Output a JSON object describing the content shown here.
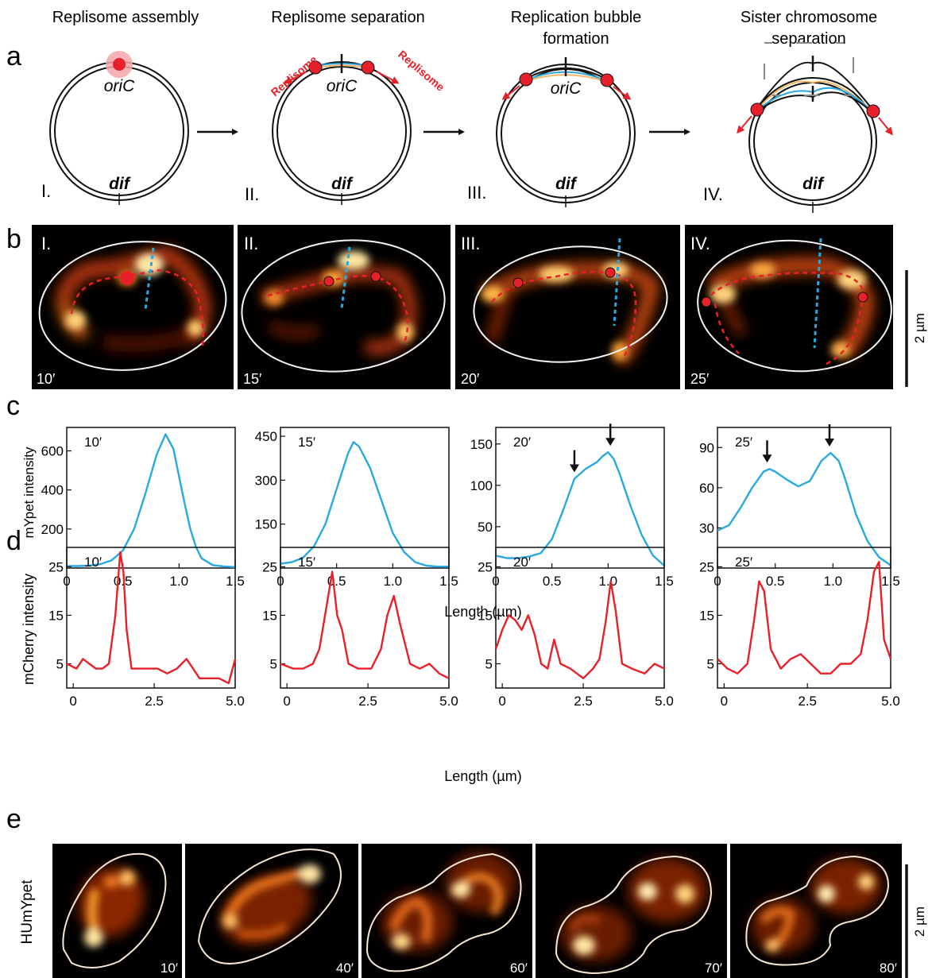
{
  "panel_letters": [
    "a",
    "b",
    "c",
    "d",
    "e"
  ],
  "panel_a": {
    "stage_titles": [
      [
        "Replisome assembly"
      ],
      [
        "Replisome separation"
      ],
      [
        "Replication bubble",
        "formation"
      ],
      [
        "Sister chromosome",
        "separation"
      ]
    ],
    "numerals": [
      "I.",
      "II.",
      "III.",
      "IV."
    ],
    "origin_label": "oriC",
    "terminus_label": "dif",
    "replisome_label": "Replisome",
    "colors": {
      "replisome": "#e8202a",
      "strand_blue": "#29a9e1",
      "strand_orange": "#f5b765"
    }
  },
  "panel_b": {
    "numerals": [
      "I.",
      "II.",
      "III.",
      "IV."
    ],
    "times": [
      "10′",
      "15′",
      "20′",
      "25′"
    ],
    "scale_bar": "2 µm"
  },
  "chart_data": [
    {
      "type": "line",
      "panel": "c",
      "annotation": "10′",
      "ylabel": "mYpet intensity",
      "xlabel": "Length (µm)",
      "xlim": [
        0,
        1.5
      ],
      "ylim": [
        0,
        720
      ],
      "xticks": [
        0,
        0.5,
        1.0,
        1.5
      ],
      "xticklabels": [
        "0",
        "0.5",
        "1.0",
        "1.5"
      ],
      "yticks": [
        200,
        400,
        600
      ],
      "yticklabels": [
        "200",
        "400",
        "600"
      ],
      "color": "#29a9e1",
      "x": [
        0,
        0.1,
        0.2,
        0.3,
        0.4,
        0.5,
        0.6,
        0.7,
        0.8,
        0.88,
        0.95,
        1.0,
        1.05,
        1.1,
        1.15,
        1.2,
        1.3,
        1.4,
        1.5
      ],
      "y": [
        10,
        10,
        12,
        20,
        40,
        90,
        200,
        380,
        580,
        685,
        610,
        470,
        330,
        200,
        110,
        50,
        15,
        8,
        5
      ]
    },
    {
      "type": "line",
      "panel": "c",
      "annotation": "15′",
      "xlim": [
        0,
        1.5
      ],
      "ylim": [
        0,
        480
      ],
      "xticks": [
        0,
        0.5,
        1.0,
        1.5
      ],
      "xticklabels": [
        "0",
        "0.5",
        "1.0",
        "1.5"
      ],
      "yticks": [
        150,
        300,
        450
      ],
      "yticklabels": [
        "150",
        "300",
        "450"
      ],
      "color": "#29a9e1",
      "x": [
        0,
        0.1,
        0.2,
        0.3,
        0.4,
        0.5,
        0.6,
        0.65,
        0.7,
        0.8,
        0.9,
        1.0,
        1.1,
        1.2,
        1.3,
        1.4,
        1.5
      ],
      "y": [
        15,
        20,
        35,
        75,
        150,
        270,
        390,
        430,
        415,
        340,
        230,
        120,
        55,
        20,
        8,
        5,
        5
      ]
    },
    {
      "type": "line",
      "panel": "c",
      "annotation": "20′",
      "xlim": [
        0,
        1.5
      ],
      "ylim": [
        0,
        170
      ],
      "xticks": [
        0,
        0.5,
        1.0,
        1.5
      ],
      "xticklabels": [
        "0",
        "0.5",
        "1.0",
        "1.5"
      ],
      "yticks": [
        50,
        100,
        150
      ],
      "yticklabels": [
        "50",
        "100",
        "150"
      ],
      "color": "#29a9e1",
      "x": [
        0,
        0.1,
        0.2,
        0.3,
        0.4,
        0.5,
        0.6,
        0.7,
        0.8,
        0.9,
        0.95,
        1.0,
        1.05,
        1.1,
        1.2,
        1.3,
        1.4,
        1.5
      ],
      "y": [
        15,
        12,
        12,
        14,
        18,
        35,
        70,
        108,
        120,
        128,
        135,
        140,
        132,
        115,
        75,
        40,
        15,
        3
      ],
      "arrows_x": [
        0.7,
        1.02
      ]
    },
    {
      "type": "line",
      "panel": "c",
      "annotation": "25′",
      "xlim": [
        0,
        1.5
      ],
      "ylim": [
        0,
        105
      ],
      "xticks": [
        0,
        0.5,
        1.0,
        1.5
      ],
      "xticklabels": [
        "0",
        "0.5",
        "1.0",
        "1.5"
      ],
      "yticks": [
        30,
        60,
        90
      ],
      "yticklabels": [
        "30",
        "60",
        "90"
      ],
      "color": "#29a9e1",
      "x": [
        0,
        0.1,
        0.2,
        0.3,
        0.4,
        0.45,
        0.5,
        0.6,
        0.7,
        0.8,
        0.9,
        0.98,
        1.05,
        1.1,
        1.2,
        1.3,
        1.4,
        1.5
      ],
      "y": [
        28,
        32,
        45,
        60,
        72,
        74,
        72,
        66,
        61,
        65,
        80,
        86,
        80,
        68,
        40,
        20,
        8,
        2
      ],
      "arrows_x": [
        0.43,
        0.97
      ]
    },
    {
      "type": "line",
      "panel": "d",
      "annotation": "10′",
      "ylabel": "mCherry intensity",
      "xlabel": "Length (µm)",
      "xlim": [
        -0.2,
        5.0
      ],
      "ylim": [
        0,
        29
      ],
      "xticks": [
        0,
        2.5,
        5.0
      ],
      "xticklabels": [
        "0",
        "2.5",
        "5.0"
      ],
      "yticks": [
        5,
        15,
        25
      ],
      "yticklabels": [
        "5",
        "15",
        "25"
      ],
      "color": "#e8202a",
      "x": [
        -0.2,
        0.1,
        0.3,
        0.5,
        0.7,
        0.9,
        1.1,
        1.3,
        1.45,
        1.55,
        1.65,
        1.8,
        2.0,
        2.3,
        2.6,
        2.9,
        3.2,
        3.5,
        3.7,
        3.9,
        4.2,
        4.5,
        4.8,
        5.0
      ],
      "y": [
        5,
        4,
        6,
        5,
        4,
        4,
        5,
        15,
        28,
        24,
        12,
        4,
        4,
        4,
        4,
        3,
        4,
        6,
        4,
        2,
        2,
        2,
        1,
        6
      ]
    },
    {
      "type": "line",
      "panel": "d",
      "annotation": "15′",
      "xlim": [
        -0.2,
        5.0
      ],
      "ylim": [
        0,
        29
      ],
      "xticks": [
        0,
        2.5,
        5.0
      ],
      "xticklabels": [
        "0",
        "2.5",
        "5.0"
      ],
      "yticks": [
        5,
        15,
        25
      ],
      "yticklabels": [
        "5",
        "15",
        "25"
      ],
      "color": "#e8202a",
      "x": [
        -0.2,
        0.2,
        0.5,
        0.8,
        1.0,
        1.2,
        1.4,
        1.55,
        1.7,
        1.9,
        2.2,
        2.6,
        2.9,
        3.1,
        3.3,
        3.5,
        3.8,
        4.1,
        4.4,
        4.7,
        5.0
      ],
      "y": [
        5,
        4,
        4,
        5,
        8,
        16,
        24,
        15,
        12,
        5,
        4,
        4,
        8,
        15,
        19,
        13,
        5,
        4,
        5,
        3,
        2
      ]
    },
    {
      "type": "line",
      "panel": "d",
      "annotation": "20′",
      "xlim": [
        -0.2,
        5.0
      ],
      "ylim": [
        0,
        29
      ],
      "xticks": [
        0,
        2.5,
        5.0
      ],
      "xticklabels": [
        "0",
        "2.5",
        "5.0"
      ],
      "yticks": [
        5,
        15,
        25
      ],
      "yticklabels": [
        "5",
        "15",
        "25"
      ],
      "color": "#e8202a",
      "x": [
        -0.2,
        0.0,
        0.2,
        0.4,
        0.6,
        0.8,
        1.0,
        1.2,
        1.4,
        1.6,
        1.8,
        2.1,
        2.5,
        2.8,
        3.0,
        3.2,
        3.35,
        3.5,
        3.7,
        4.0,
        4.4,
        4.7,
        5.0
      ],
      "y": [
        8,
        12,
        15,
        14,
        12,
        15,
        11,
        5,
        4,
        10,
        5,
        4,
        2,
        4,
        6,
        14,
        22,
        16,
        5,
        4,
        3,
        5,
        4
      ]
    },
    {
      "type": "line",
      "panel": "d",
      "annotation": "25′",
      "xlim": [
        -0.2,
        5.0
      ],
      "ylim": [
        0,
        29
      ],
      "xticks": [
        0,
        2.5,
        5.0
      ],
      "xticklabels": [
        "0",
        "2.5",
        "5.0"
      ],
      "yticks": [
        5,
        15,
        25
      ],
      "yticklabels": [
        "5",
        "15",
        "25"
      ],
      "color": "#e8202a",
      "x": [
        -0.2,
        0.1,
        0.4,
        0.7,
        0.9,
        1.05,
        1.2,
        1.4,
        1.7,
        2.0,
        2.3,
        2.6,
        2.9,
        3.2,
        3.5,
        3.8,
        4.1,
        4.3,
        4.5,
        4.65,
        4.8,
        5.0
      ],
      "y": [
        6,
        4,
        3,
        5,
        14,
        22,
        20,
        8,
        4,
        6,
        7,
        5,
        3,
        3,
        5,
        5,
        7,
        14,
        24,
        26,
        10,
        6
      ]
    }
  ],
  "panel_c_xlabel": "Length (µm)",
  "panel_d_xlabel": "Length (µm)",
  "panel_e": {
    "ylabel": "HUmYpet",
    "times": [
      "10′",
      "40′",
      "60′",
      "70′",
      "80′"
    ],
    "scale_bar": "2 µm"
  }
}
